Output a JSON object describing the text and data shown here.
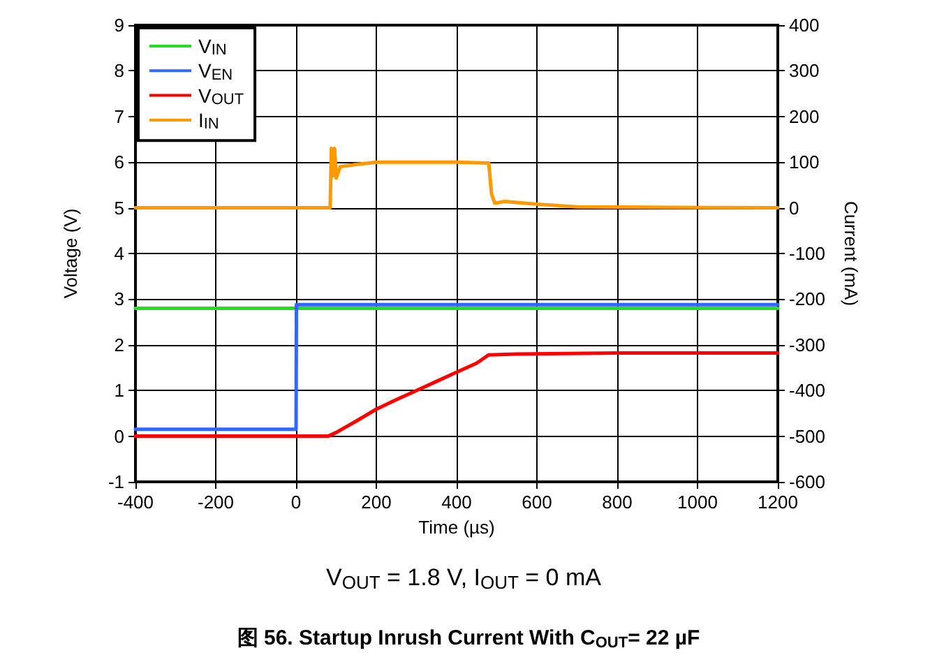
{
  "chart_data": {
    "type": "line",
    "title": "图 56. Startup Inrush Current With C$_{OUT}$= 22 µF",
    "annotations": [
      "V$_{OUT}$ = 1.8 V, I$_{OUT}$ = 0 mA"
    ],
    "xlabel": "Time (µs)",
    "ylabel": "Voltage (V)",
    "y2label": "Current (mA)",
    "xlim": [
      -400,
      1200
    ],
    "xticks": [
      -400,
      -200,
      0,
      200,
      400,
      600,
      800,
      1000,
      1200
    ],
    "ylim": [
      -1,
      9
    ],
    "yticks": [
      -1,
      0,
      1,
      2,
      3,
      4,
      5,
      6,
      7,
      8,
      9
    ],
    "y2lim": [
      -600,
      400
    ],
    "y2ticks": [
      -600,
      -500,
      -400,
      -300,
      -200,
      -100,
      0,
      100,
      200,
      300,
      400
    ],
    "grid": true,
    "legend": "top left",
    "marker": "none",
    "line_style": "solid",
    "series": [
      {
        "name": "V$_{IN}$",
        "color": "#22dd22",
        "x": [
          -400,
          -200,
          0,
          200,
          400,
          600,
          800,
          1000,
          1200
        ],
        "values": [
          2.8,
          2.8,
          2.8,
          2.8,
          2.8,
          2.8,
          2.8,
          2.8,
          2.8
        ]
      },
      {
        "name": "V$_{EN}$",
        "color": "#3366ff",
        "x": [
          -400,
          0,
          1,
          400,
          800,
          1200
        ],
        "values": [
          0.15,
          0.15,
          2.88,
          2.88,
          2.88,
          2.88
        ]
      },
      {
        "name": "V$_{OUT}$",
        "color": "#ff0000",
        "x": [
          -400,
          80,
          100,
          150,
          200,
          250,
          300,
          350,
          400,
          450,
          480,
          550,
          800,
          1200
        ],
        "values": [
          0,
          0,
          0.08,
          0.33,
          0.59,
          0.8,
          1.0,
          1.2,
          1.4,
          1.6,
          1.78,
          1.8,
          1.82,
          1.82
        ]
      },
      {
        "name": "I$_{IN}$",
        "color": "#ff9900",
        "axis": "y2",
        "x": [
          -400,
          85,
          88,
          92,
          96,
          100,
          110,
          150,
          200,
          300,
          400,
          480,
          487,
          495,
          520,
          600,
          700,
          1200
        ],
        "values": [
          0,
          0,
          130,
          70,
          130,
          65,
          90,
          95,
          100,
          100,
          100,
          98,
          30,
          10,
          14,
          8,
          2,
          0
        ]
      }
    ]
  }
}
